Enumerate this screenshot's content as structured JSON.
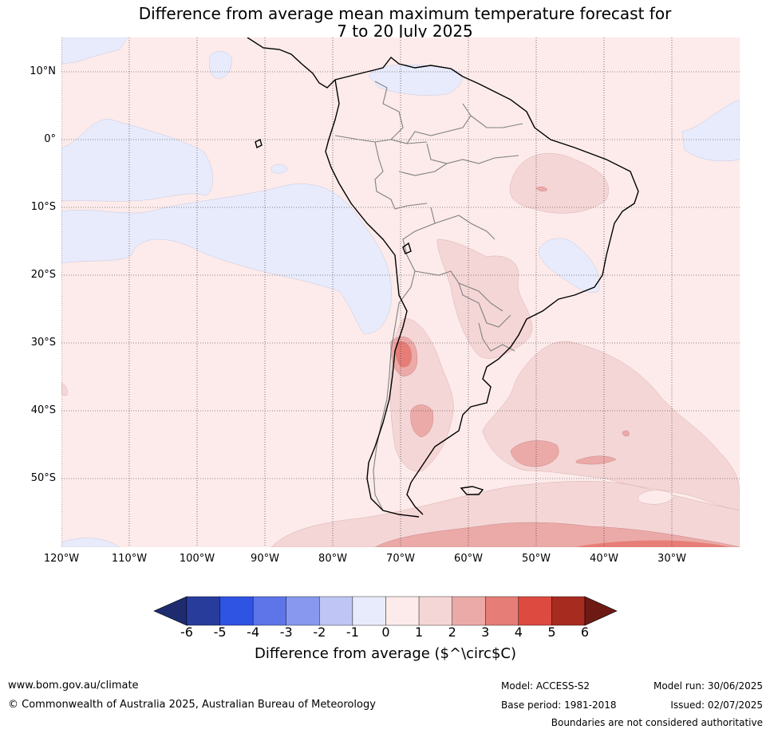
{
  "title": {
    "line1": "Difference from average mean maximum temperature forecast for",
    "line2": "7 to 20 July 2025"
  },
  "map": {
    "lat_labels": [
      "10°N",
      "0°",
      "10°S",
      "20°S",
      "30°S",
      "40°S",
      "50°S"
    ],
    "lon_labels": [
      "120°W",
      "110°W",
      "100°W",
      "90°W",
      "80°W",
      "70°W",
      "60°W",
      "50°W",
      "40°W",
      "30°W"
    ],
    "extent": {
      "lon": [
        -120,
        -20
      ],
      "lat": [
        -60,
        15
      ]
    }
  },
  "colorbar": {
    "ticks": [
      "-6",
      "-5",
      "-4",
      "-3",
      "-2",
      "-1",
      "0",
      "1",
      "2",
      "3",
      "4",
      "5",
      "6"
    ],
    "colors": [
      "#283c9b",
      "#2f53e3",
      "#5d75e8",
      "#8898ee",
      "#bfc6f5",
      "#e8ebfb",
      "#fcebea",
      "#f5d6d6",
      "#ebaaa8",
      "#e67e77",
      "#dd4a3f",
      "#a82b20"
    ],
    "under_color": "#1e2b6f",
    "over_color": "#6e1a14",
    "label": "Difference from average ($^\\circ$C)"
  },
  "footer": {
    "website": "www.bom.gov.au/climate",
    "copyright": "© Commonwealth of Australia 2025, Australian Bureau of Meteorology",
    "model": "Model: ACCESS-S2",
    "base_period": "Base period: 1981-2018",
    "model_run": "Model run: 30/06/2025",
    "issued": "Issued: 02/07/2025",
    "disclaimer": "Boundaries are not considered authoritative"
  }
}
